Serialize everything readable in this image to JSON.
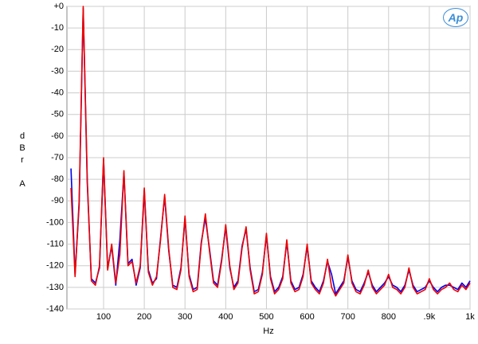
{
  "chart_data": {
    "type": "line",
    "xlabel": "Hz",
    "ylabel": "dBr A",
    "logo": "Ap",
    "x": [
      20,
      30,
      40,
      50,
      60,
      70,
      80,
      90,
      100,
      110,
      120,
      130,
      140,
      150,
      160,
      170,
      180,
      190,
      200,
      210,
      220,
      230,
      240,
      250,
      260,
      270,
      280,
      290,
      300,
      310,
      320,
      330,
      340,
      350,
      360,
      370,
      380,
      390,
      400,
      410,
      420,
      430,
      440,
      450,
      460,
      470,
      480,
      490,
      500,
      510,
      520,
      530,
      540,
      550,
      560,
      570,
      580,
      590,
      600,
      610,
      620,
      630,
      640,
      650,
      660,
      670,
      680,
      690,
      700,
      710,
      720,
      730,
      740,
      750,
      760,
      770,
      780,
      790,
      800,
      810,
      820,
      830,
      840,
      850,
      860,
      870,
      880,
      890,
      900,
      910,
      920,
      930,
      940,
      950,
      960,
      970,
      980,
      990,
      1000
    ],
    "series": [
      {
        "color": "#0000ee",
        "values": [
          -75,
          -124,
          -92,
          -1,
          -82,
          -126,
          -128,
          -121,
          -71,
          -121,
          -111,
          -129,
          -108,
          -77,
          -119,
          -117,
          -129,
          -121,
          -85,
          -122,
          -128,
          -126,
          -107,
          -88,
          -113,
          -129,
          -130,
          -121,
          -98,
          -124,
          -131,
          -130,
          -109,
          -98,
          -112,
          -127,
          -129,
          -117,
          -102,
          -121,
          -130,
          -127,
          -111,
          -103,
          -121,
          -132,
          -131,
          -123,
          -106,
          -125,
          -132,
          -130,
          -125,
          -109,
          -127,
          -131,
          -130,
          -124,
          -111,
          -127,
          -130,
          -132,
          -127,
          -118,
          -124,
          -133,
          -130,
          -127,
          -116,
          -127,
          -131,
          -132,
          -128,
          -123,
          -129,
          -132,
          -130,
          -128,
          -125,
          -129,
          -130,
          -132,
          -129,
          -122,
          -129,
          -132,
          -131,
          -130,
          -127,
          -130,
          -132,
          -130,
          -129,
          -129,
          -130,
          -131,
          -128,
          -130,
          -127
        ]
      },
      {
        "color": "#ee0000",
        "values": [
          -84,
          -125,
          -90,
          0,
          -80,
          -127,
          -129,
          -120,
          -70,
          -122,
          -110,
          -128,
          -115,
          -76,
          -120,
          -118,
          -128,
          -120,
          -84,
          -123,
          -129,
          -125,
          -108,
          -87,
          -112,
          -130,
          -131,
          -122,
          -97,
          -125,
          -132,
          -131,
          -110,
          -96,
          -113,
          -128,
          -130,
          -118,
          -101,
          -120,
          -131,
          -128,
          -112,
          -102,
          -122,
          -133,
          -132,
          -124,
          -105,
          -126,
          -133,
          -131,
          -126,
          -108,
          -128,
          -132,
          -131,
          -125,
          -110,
          -128,
          -131,
          -133,
          -128,
          -117,
          -130,
          -134,
          -131,
          -128,
          -115,
          -128,
          -132,
          -133,
          -129,
          -122,
          -130,
          -133,
          -131,
          -129,
          -124,
          -130,
          -131,
          -133,
          -130,
          -121,
          -130,
          -133,
          -132,
          -131,
          -126,
          -131,
          -133,
          -131,
          -130,
          -128,
          -131,
          -132,
          -129,
          -131,
          -128
        ]
      }
    ],
    "xlim": [
      10,
      1000
    ],
    "xticks": [
      100,
      200,
      300,
      400,
      500,
      600,
      700,
      800,
      {
        "value": 900,
        "label": ".9k"
      },
      {
        "value": 1000,
        "label": "1k"
      }
    ],
    "ylim": [
      -140,
      0
    ],
    "yticks": [
      {
        "value": 0,
        "label": "+0"
      },
      -10,
      -20,
      -30,
      -40,
      -50,
      -60,
      -70,
      -80,
      -90,
      -100,
      -110,
      -120,
      -130,
      -140
    ],
    "grid": true
  }
}
